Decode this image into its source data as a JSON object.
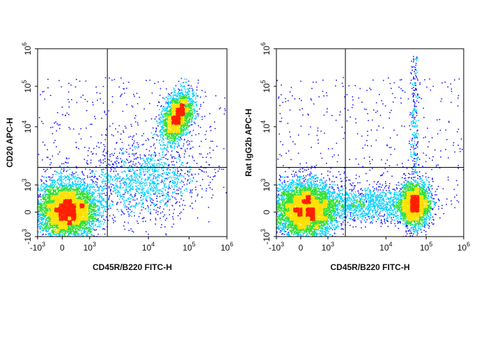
{
  "chart_data": [
    {
      "type": "scatter",
      "style": "pseudocolor density dot plot",
      "xlabel": "CD45R/B220 FITC-H",
      "ylabel": "CD20 APC-H",
      "x_scale": "biexponential",
      "y_scale": "biexponential",
      "xlim": [
        -1000,
        1000000
      ],
      "ylim": [
        -1000,
        1000000
      ],
      "xticks": [
        {
          "label": "-10",
          "exp": "3",
          "value": -1000
        },
        {
          "label": "0",
          "exp": "",
          "value": 0
        },
        {
          "label": "10",
          "exp": "3",
          "value": 1000
        },
        {
          "label": "10",
          "exp": "4",
          "value": 10000
        },
        {
          "label": "10",
          "exp": "5",
          "value": 100000
        },
        {
          "label": "10",
          "exp": "6",
          "value": 1000000
        }
      ],
      "yticks": [
        {
          "label": "-10",
          "exp": "3",
          "value": -1000
        },
        {
          "label": "0",
          "exp": "",
          "value": 0
        },
        {
          "label": "10",
          "exp": "3",
          "value": 1000
        },
        {
          "label": "10",
          "exp": "4",
          "value": 10000
        },
        {
          "label": "10",
          "exp": "5",
          "value": 100000
        },
        {
          "label": "10",
          "exp": "6",
          "value": 1000000
        }
      ],
      "quadrant_gate": {
        "x": 2000,
        "y": 2000
      },
      "populations": [
        {
          "center": [
            150,
            100
          ],
          "relative_size": 0.55
        },
        {
          "center": [
            50000,
            18000
          ],
          "relative_size": 0.22
        },
        {
          "center": [
            8000,
            1200
          ],
          "relative_size": 0.15
        }
      ]
    },
    {
      "type": "scatter",
      "style": "pseudocolor density dot plot",
      "xlabel": "CD45R/B220 FITC-H",
      "ylabel": "Rat IgG2b APC-H",
      "x_scale": "biexponential",
      "y_scale": "biexponential",
      "xlim": [
        -1000,
        1000000
      ],
      "ylim": [
        -1000,
        1000000
      ],
      "xticks": [
        {
          "label": "-10",
          "exp": "3",
          "value": -1000
        },
        {
          "label": "0",
          "exp": "",
          "value": 0
        },
        {
          "label": "10",
          "exp": "3",
          "value": 1000
        },
        {
          "label": "10",
          "exp": "4",
          "value": 10000
        },
        {
          "label": "10",
          "exp": "5",
          "value": 100000
        },
        {
          "label": "10",
          "exp": "6",
          "value": 1000000
        }
      ],
      "yticks": [
        {
          "label": "-10",
          "exp": "3",
          "value": -1000
        },
        {
          "label": "0",
          "exp": "",
          "value": 0
        },
        {
          "label": "10",
          "exp": "3",
          "value": 1000
        },
        {
          "label": "10",
          "exp": "4",
          "value": 10000
        },
        {
          "label": "10",
          "exp": "5",
          "value": 100000
        },
        {
          "label": "10",
          "exp": "6",
          "value": 1000000
        }
      ],
      "quadrant_gate": {
        "x": 2000,
        "y": 2000
      },
      "populations": [
        {
          "center": [
            150,
            100
          ],
          "relative_size": 0.55
        },
        {
          "center": [
            50000,
            300
          ],
          "relative_size": 0.25
        },
        {
          "center": [
            5000,
            300
          ],
          "relative_size": 0.15
        }
      ]
    }
  ],
  "colors": {
    "density_low": "#1a1aff",
    "density_mid_low": "#00d0ff",
    "density_mid": "#30e030",
    "density_mid_high": "#ffe000",
    "density_high": "#ff2000",
    "frame": "#000000",
    "gate_line": "#000000"
  }
}
